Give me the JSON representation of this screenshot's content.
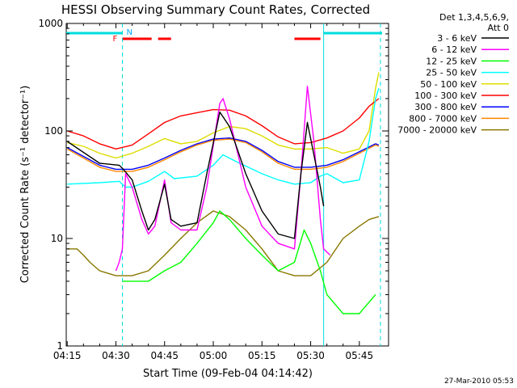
{
  "chart_data": {
    "type": "line",
    "title": "HESSI Observing Summary Count Rates, Corrected",
    "xlabel": "Start Time (09-Feb-04 04:14:42)",
    "ylabel": "Corrected Count Rate (s⁻¹ detector⁻¹)",
    "footer": "27-Mar-2010 05:53",
    "y_scale": "log",
    "ylim": [
      1,
      1000
    ],
    "xlim": [
      "04:14:42",
      "05:54:00"
    ],
    "x_ticks": [
      "04:15",
      "04:30",
      "04:45",
      "05:00",
      "05:15",
      "05:30",
      "05:45"
    ],
    "y_ticks": [
      "1",
      "10",
      "100",
      "1000"
    ],
    "legend_header": [
      "Det 1,3,4,5,6,9,",
      "Att 0"
    ],
    "legend_placement": "right",
    "flags": {
      "N_label": "N",
      "F_label": "F",
      "cyan_bars": [
        [
          "04:14:42",
          "04:32:00"
        ],
        [
          "05:34:00",
          "05:52:00"
        ]
      ],
      "red_bars": [
        [
          "04:32:00",
          "04:41:00"
        ],
        [
          "04:43:00",
          "04:47:00"
        ],
        [
          "05:25:00",
          "05:33:00"
        ]
      ],
      "night_boundaries": [
        "04:32:00",
        "05:34:00",
        "05:51:30"
      ]
    },
    "series": [
      {
        "name": "3 - 6 keV",
        "color": "#000000",
        "x": [
          "04:15",
          "04:25",
          "04:31",
          "04:32",
          "04:35",
          "04:38",
          "04:40",
          "04:42",
          "04:45",
          "04:47",
          "04:50",
          "04:55",
          "04:58",
          "05:02",
          "05:05",
          "05:10",
          "05:15",
          "05:20",
          "05:25",
          "05:27",
          "05:29",
          "05:31",
          "05:33",
          "05:34"
        ],
        "y": [
          80,
          50,
          48,
          45,
          35,
          18,
          12,
          15,
          32,
          15,
          13,
          14,
          40,
          150,
          110,
          40,
          18,
          11,
          10,
          40,
          120,
          60,
          30,
          20
        ]
      },
      {
        "name": "6 - 12 keV",
        "color": "#ff00ff",
        "x": [
          "04:30",
          "04:31",
          "04:32",
          "04:33",
          "04:35",
          "04:38",
          "04:40",
          "04:42",
          "04:45",
          "04:47",
          "04:50",
          "04:55",
          "04:58",
          "05:02",
          "05:03",
          "05:05",
          "05:10",
          "05:15",
          "05:20",
          "05:25",
          "05:27",
          "05:29",
          "05:31",
          "05:33",
          "05:34",
          "05:36"
        ],
        "y": [
          5,
          6,
          8,
          40,
          30,
          15,
          11,
          13,
          35,
          14,
          12,
          12,
          30,
          180,
          200,
          130,
          30,
          13,
          9,
          8,
          40,
          260,
          80,
          15,
          8,
          7
        ]
      },
      {
        "name": "12 - 25 keV",
        "color": "#00ff00",
        "x": [
          "04:32",
          "04:35",
          "04:40",
          "04:45",
          "04:50",
          "04:55",
          "05:00",
          "05:02",
          "05:05",
          "05:10",
          "05:15",
          "05:20",
          "05:25",
          "05:28",
          "05:30",
          "05:33",
          "05:35",
          "05:40",
          "05:45",
          "05:50"
        ],
        "y": [
          4,
          4,
          4,
          5,
          6,
          9,
          14,
          18,
          15,
          10,
          7,
          5,
          6,
          12,
          9,
          5,
          3,
          2,
          2,
          3
        ]
      },
      {
        "name": "25 - 50 keV",
        "color": "#00ffff",
        "x": [
          "04:15",
          "04:25",
          "04:31",
          "04:33",
          "04:35",
          "04:40",
          "04:45",
          "04:48",
          "04:55",
          "05:00",
          "05:03",
          "05:07",
          "05:15",
          "05:20",
          "05:25",
          "05:30",
          "05:33",
          "05:35",
          "05:40",
          "05:45",
          "05:48",
          "05:50",
          "05:51"
        ],
        "y": [
          32,
          33,
          34,
          30,
          30,
          34,
          42,
          36,
          38,
          48,
          60,
          52,
          40,
          35,
          32,
          33,
          38,
          40,
          33,
          35,
          80,
          200,
          250
        ]
      },
      {
        "name": "50 - 100 keV",
        "color": "#dddd00",
        "x": [
          "04:15",
          "04:20",
          "04:25",
          "04:30",
          "04:35",
          "04:40",
          "04:45",
          "04:50",
          "04:55",
          "05:00",
          "05:05",
          "05:10",
          "05:15",
          "05:20",
          "05:25",
          "05:30",
          "05:35",
          "05:40",
          "05:45",
          "05:48",
          "05:50",
          "05:51"
        ],
        "y": [
          78,
          72,
          62,
          56,
          62,
          72,
          85,
          76,
          80,
          96,
          110,
          105,
          90,
          74,
          68,
          68,
          70,
          62,
          68,
          100,
          250,
          350
        ]
      },
      {
        "name": "100 - 300 keV",
        "color": "#ff0000",
        "x": [
          "04:15",
          "04:20",
          "04:25",
          "04:30",
          "04:35",
          "04:40",
          "04:45",
          "04:50",
          "04:55",
          "05:00",
          "05:05",
          "05:10",
          "05:15",
          "05:20",
          "05:25",
          "05:30",
          "05:35",
          "05:40",
          "05:45",
          "05:48",
          "05:51"
        ],
        "y": [
          100,
          90,
          76,
          68,
          74,
          94,
          120,
          138,
          148,
          158,
          156,
          138,
          112,
          88,
          76,
          78,
          86,
          100,
          132,
          170,
          200
        ]
      },
      {
        "name": "300 - 800 keV",
        "color": "#0000ff",
        "x": [
          "04:15",
          "04:20",
          "04:25",
          "04:30",
          "04:35",
          "04:40",
          "04:45",
          "04:50",
          "04:55",
          "05:00",
          "05:05",
          "05:10",
          "05:15",
          "05:20",
          "05:25",
          "05:30",
          "05:35",
          "05:40",
          "05:45",
          "05:50",
          "05:51"
        ],
        "y": [
          70,
          58,
          48,
          44,
          44,
          48,
          56,
          66,
          76,
          84,
          86,
          80,
          66,
          52,
          46,
          46,
          48,
          54,
          64,
          76,
          74
        ]
      },
      {
        "name": "800 - 7000 keV",
        "color": "#ff8800",
        "x": [
          "04:15",
          "04:20",
          "04:25",
          "04:30",
          "04:35",
          "04:40",
          "04:45",
          "04:50",
          "04:55",
          "05:00",
          "05:05",
          "05:10",
          "05:15",
          "05:20",
          "05:25",
          "05:30",
          "05:35",
          "05:40",
          "05:45",
          "05:50",
          "05:51"
        ],
        "y": [
          68,
          56,
          46,
          42,
          42,
          46,
          54,
          64,
          74,
          82,
          84,
          78,
          64,
          50,
          44,
          44,
          46,
          52,
          62,
          74,
          72
        ]
      },
      {
        "name": "7000 - 20000 keV",
        "color": "#887700",
        "x": [
          "04:15",
          "04:18",
          "04:20",
          "04:22",
          "04:25",
          "04:30",
          "04:35",
          "04:40",
          "04:45",
          "04:50",
          "04:55",
          "05:00",
          "05:05",
          "05:10",
          "05:15",
          "05:20",
          "05:25",
          "05:30",
          "05:35",
          "05:40",
          "05:45",
          "05:48",
          "05:51"
        ],
        "y": [
          8,
          8,
          7,
          6,
          5,
          4.5,
          4.5,
          5,
          7,
          10,
          14,
          18,
          16,
          12,
          8,
          5,
          4.5,
          4.5,
          6,
          10,
          13,
          15,
          16
        ]
      }
    ]
  }
}
